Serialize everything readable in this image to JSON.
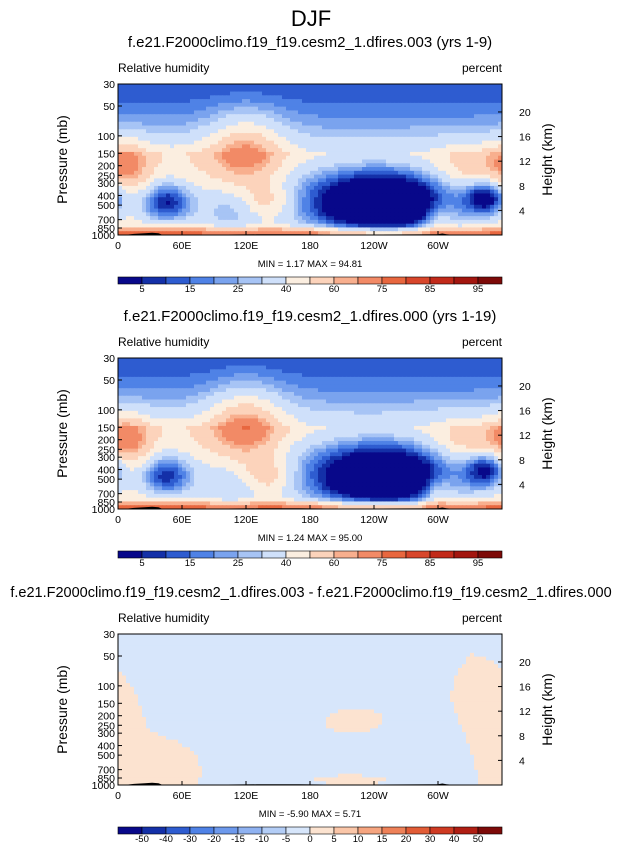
{
  "page_title": "DJF",
  "chart_data": [
    {
      "type": "heatmap",
      "title": "f.e21.F2000climo.f19_f19.cesm2_1.dfires.003 (yrs 1-9)",
      "left_label": "Relative humidity",
      "right_label": "percent",
      "ylabel": "Pressure (mb)",
      "y2label": "Height (km)",
      "x_ticks": [
        "0",
        "60E",
        "120E",
        "180",
        "120W",
        "60W"
      ],
      "y_ticks": [
        "30",
        "50",
        "100",
        "150",
        "200",
        "250",
        "300",
        "400",
        "500",
        "700",
        "850",
        "1000"
      ],
      "y2_ticks": [
        "20",
        "16",
        "12",
        "8",
        "4"
      ],
      "stats": "MIN =   1.17   MAX =  94.81",
      "colorbar": {
        "labels": [
          "5",
          "15",
          "25",
          "40",
          "60",
          "75",
          "85",
          "95"
        ],
        "colors": [
          "#08088a",
          "#1430a8",
          "#2e5cd0",
          "#4f82e6",
          "#7aa3ee",
          "#a7c4f5",
          "#cfe0fa",
          "#fbeee0",
          "#fcd3bb",
          "#f8af8e",
          "#f28a66",
          "#e8673f",
          "#d8462b",
          "#c22a1a",
          "#a3160f",
          "#7d0a08"
        ]
      },
      "cmap": "rh",
      "domain": "full",
      "blobs": [
        {
          "lon": 45,
          "lev": 470,
          "sx": 18,
          "sy": 160,
          "a": -42
        },
        {
          "lon": 255,
          "lev": 480,
          "sx": 45,
          "sy": 260,
          "a": -62
        },
        {
          "lon": 345,
          "lev": 420,
          "sx": 14,
          "sy": 120,
          "a": -45
        },
        {
          "lon": 105,
          "lev": 600,
          "sx": 22,
          "sy": 280,
          "a": -18
        },
        {
          "lon": 200,
          "lev": 450,
          "sx": 60,
          "sy": 300,
          "a": -22
        },
        {
          "lon": 120,
          "lev": 140,
          "sx": 25,
          "sy": 90,
          "a": 28
        },
        {
          "lon": 10,
          "lev": 200,
          "sx": 15,
          "sy": 90,
          "a": 20
        },
        {
          "lon": 330,
          "lev": 220,
          "sx": 25,
          "sy": 80,
          "a": 14
        },
        {
          "lon": 140,
          "lev": 460,
          "sx": 18,
          "sy": 140,
          "a": 20
        },
        {
          "lon": 180,
          "lev": 950,
          "sx": 200,
          "sy": 120,
          "a": 18
        },
        {
          "lon": 300,
          "lev": 700,
          "sx": 10,
          "sy": 200,
          "a": 18
        }
      ]
    },
    {
      "type": "heatmap",
      "title": "f.e21.F2000climo.f19_f19.cesm2_1.dfires.000 (yrs 1-19)",
      "left_label": "Relative humidity",
      "right_label": "percent",
      "ylabel": "Pressure (mb)",
      "y2label": "Height (km)",
      "x_ticks": [
        "0",
        "60E",
        "120E",
        "180",
        "120W",
        "60W"
      ],
      "y_ticks": [
        "30",
        "50",
        "100",
        "150",
        "200",
        "250",
        "300",
        "400",
        "500",
        "700",
        "850",
        "1000"
      ],
      "y2_ticks": [
        "20",
        "16",
        "12",
        "8",
        "4"
      ],
      "stats": "MIN =   1.24   MAX =  95.00",
      "colorbar": {
        "labels": [
          "5",
          "15",
          "25",
          "40",
          "60",
          "75",
          "85",
          "95"
        ],
        "colors": [
          "#08088a",
          "#1430a8",
          "#2e5cd0",
          "#4f82e6",
          "#7aa3ee",
          "#a7c4f5",
          "#cfe0fa",
          "#fbeee0",
          "#fcd3bb",
          "#f8af8e",
          "#f28a66",
          "#e8673f",
          "#d8462b",
          "#c22a1a",
          "#a3160f",
          "#7d0a08"
        ]
      },
      "cmap": "rh",
      "domain": "full",
      "blobs": [
        {
          "lon": 45,
          "lev": 460,
          "sx": 18,
          "sy": 160,
          "a": -40
        },
        {
          "lon": 255,
          "lev": 470,
          "sx": 45,
          "sy": 260,
          "a": -60
        },
        {
          "lon": 345,
          "lev": 400,
          "sx": 14,
          "sy": 120,
          "a": -42
        },
        {
          "lon": 105,
          "lev": 600,
          "sx": 22,
          "sy": 280,
          "a": -16
        },
        {
          "lon": 200,
          "lev": 450,
          "sx": 60,
          "sy": 300,
          "a": -20
        },
        {
          "lon": 120,
          "lev": 140,
          "sx": 25,
          "sy": 90,
          "a": 30
        },
        {
          "lon": 10,
          "lev": 200,
          "sx": 15,
          "sy": 90,
          "a": 22
        },
        {
          "lon": 330,
          "lev": 220,
          "sx": 25,
          "sy": 80,
          "a": 15
        },
        {
          "lon": 140,
          "lev": 470,
          "sx": 18,
          "sy": 140,
          "a": 22
        },
        {
          "lon": 180,
          "lev": 950,
          "sx": 200,
          "sy": 120,
          "a": 18
        },
        {
          "lon": 300,
          "lev": 700,
          "sx": 10,
          "sy": 200,
          "a": 18
        }
      ]
    },
    {
      "type": "heatmap",
      "title": "f.e21.F2000climo.f19_f19.cesm2_1.dfires.003 - f.e21.F2000climo.f19_f19.cesm2_1.dfires.000",
      "left_label": "Relative humidity",
      "right_label": "percent",
      "ylabel": "Pressure (mb)",
      "y2label": "Height (km)",
      "x_ticks": [
        "0",
        "60E",
        "120E",
        "180",
        "120W",
        "60W"
      ],
      "y_ticks": [
        "30",
        "50",
        "100",
        "150",
        "200",
        "250",
        "300",
        "400",
        "500",
        "700",
        "850",
        "1000"
      ],
      "y2_ticks": [
        "20",
        "16",
        "12",
        "8",
        "4"
      ],
      "stats": "MIN =  -5.90   MAX =   5.71",
      "colorbar": {
        "labels": [
          "-50",
          "-40",
          "-30",
          "-20",
          "-15",
          "-10",
          "-5",
          "0",
          "5",
          "10",
          "15",
          "20",
          "30",
          "40",
          "50"
        ],
        "colors": [
          "#08088a",
          "#1430a8",
          "#2e5cd0",
          "#4f82e6",
          "#6d99ec",
          "#8fb2f1",
          "#b3cdf6",
          "#d7e6fb",
          "#fce3d0",
          "#fac6a8",
          "#f6a580",
          "#ee8158",
          "#e25c36",
          "#cf3a22",
          "#b01e13",
          "#7d0a08"
        ]
      },
      "cmap": "diff",
      "domain": "full",
      "blobs": [
        {
          "lon": 150,
          "lev": 400,
          "sx": 50,
          "sy": 260,
          "a": -3
        },
        {
          "lon": 290,
          "lev": 600,
          "sx": 50,
          "sy": 260,
          "a": -2.5
        },
        {
          "lon": 40,
          "lev": 620,
          "sx": 25,
          "sy": 200,
          "a": 2.5
        },
        {
          "lon": 220,
          "lev": 870,
          "sx": 40,
          "sy": 90,
          "a": 2
        },
        {
          "lon": 350,
          "lev": 500,
          "sx": 18,
          "sy": 250,
          "a": 2.5
        },
        {
          "lon": 210,
          "lev": 250,
          "sx": 22,
          "sy": 60,
          "a": 2
        }
      ]
    }
  ]
}
